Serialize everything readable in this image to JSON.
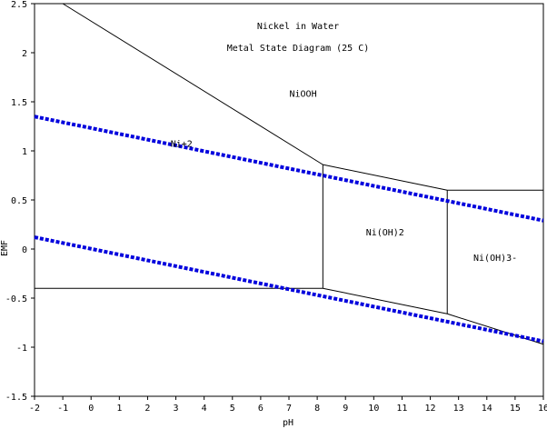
{
  "chart_data": {
    "type": "line",
    "title": "Nickel in Water",
    "subtitle": "Metal State Diagram (25 C)",
    "xlabel": "pH",
    "ylabel": "EMF",
    "xlim": [
      -2,
      16
    ],
    "ylim": [
      -1.5,
      2.5
    ],
    "xticks": [
      -2,
      -1,
      0,
      1,
      2,
      3,
      4,
      5,
      6,
      7,
      8,
      9,
      10,
      11,
      12,
      13,
      14,
      15,
      16
    ],
    "yticks": [
      -1.5,
      -1,
      -0.5,
      0,
      0.5,
      1,
      1.5,
      2,
      2.5
    ],
    "grid": false,
    "boundaries": [
      {
        "name": "b1",
        "x": [
          -1,
          8.2
        ],
        "y": [
          2.5,
          0.86
        ]
      },
      {
        "name": "b2",
        "x": [
          -2,
          8.2
        ],
        "y": [
          -0.4,
          -0.4
        ]
      },
      {
        "name": "b3",
        "x": [
          8.2,
          8.2
        ],
        "y": [
          -0.4,
          0.86
        ]
      },
      {
        "name": "b4",
        "x": [
          8.2,
          12.6
        ],
        "y": [
          0.86,
          0.6
        ]
      },
      {
        "name": "b5",
        "x": [
          12.6,
          16
        ],
        "y": [
          0.6,
          0.6
        ]
      },
      {
        "name": "b6",
        "x": [
          12.6,
          12.6
        ],
        "y": [
          -0.66,
          0.6
        ]
      },
      {
        "name": "b7",
        "x": [
          8.2,
          12.6
        ],
        "y": [
          -0.4,
          -0.66
        ]
      },
      {
        "name": "b8",
        "x": [
          12.6,
          16
        ],
        "y": [
          -0.66,
          -0.97
        ]
      }
    ],
    "water_lines": [
      {
        "name": "oxygen",
        "x": [
          -2,
          16
        ],
        "y": [
          1.35,
          0.29
        ]
      },
      {
        "name": "hydrogen",
        "x": [
          -2,
          16
        ],
        "y": [
          0.12,
          -0.94
        ]
      }
    ],
    "labels": [
      {
        "text": "NiOOH",
        "x": 7.5,
        "y": 1.55
      },
      {
        "text": "Ni+2",
        "x": 3.2,
        "y": 1.04
      },
      {
        "text": "Ni(OH)2",
        "x": 10.4,
        "y": 0.14
      },
      {
        "text": "Ni(OH)3-",
        "x": 14.3,
        "y": -0.12
      }
    ],
    "colors": {
      "boundary": "#000000",
      "water": "#0000dd"
    }
  }
}
